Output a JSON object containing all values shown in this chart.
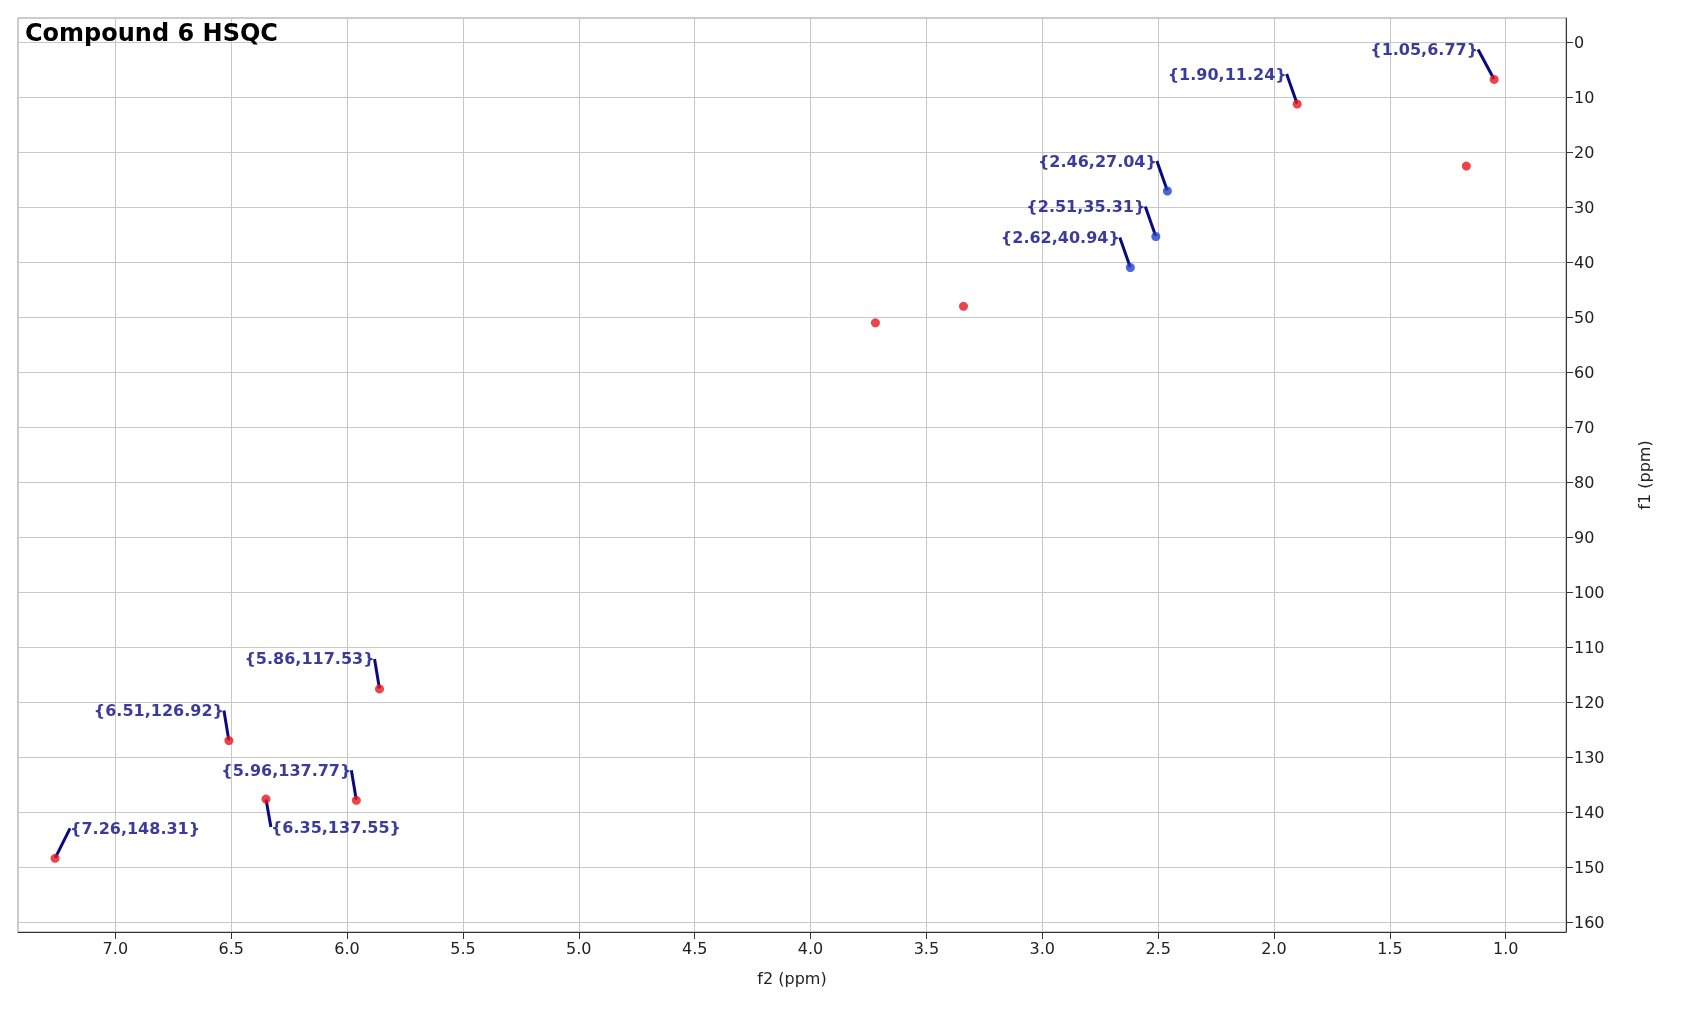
{
  "chart_data": {
    "type": "scatter",
    "title": "Compound 6 HSQC",
    "xlabel": "f2 (ppm)",
    "ylabel": "f1 (ppm)",
    "xlim": [
      7.42,
      0.74
    ],
    "ylim": [
      161.7,
      -4.4
    ],
    "xticks": [
      {
        "value": 7,
        "label": "7.0"
      },
      {
        "value": 6.5,
        "label": "6.5"
      },
      {
        "value": 6,
        "label": "6.0"
      },
      {
        "value": 5.5,
        "label": "5.5"
      },
      {
        "value": 5,
        "label": "5.0"
      },
      {
        "value": 4.5,
        "label": "4.5"
      },
      {
        "value": 4,
        "label": "4.0"
      },
      {
        "value": 3.5,
        "label": "3.5"
      },
      {
        "value": 3,
        "label": "3.0"
      },
      {
        "value": 2.5,
        "label": "2.5"
      },
      {
        "value": 2,
        "label": "2.0"
      },
      {
        "value": 1.5,
        "label": "1.5"
      },
      {
        "value": 1,
        "label": "1.0"
      }
    ],
    "yticks": [
      0,
      10,
      20,
      30,
      40,
      50,
      60,
      70,
      80,
      90,
      100,
      110,
      120,
      130,
      140,
      150,
      160
    ],
    "grid": true,
    "marker": "circle",
    "series": [
      {
        "color": "#e8141b",
        "x": [
          1.05,
          1.9,
          5.86,
          6.51,
          5.96,
          6.35,
          7.26,
          3.34,
          3.72,
          1.17
        ],
        "values": [
          6.77,
          11.24,
          117.53,
          126.92,
          137.77,
          137.55,
          148.31,
          48.0,
          51.0,
          22.5
        ]
      },
      {
        "color": "#2040d0",
        "x": [
          2.46,
          2.51,
          2.62
        ],
        "values": [
          27.04,
          35.31,
          40.94
        ]
      }
    ],
    "annotations": [
      {
        "text": "{1.05,6.77}",
        "x": 1.05,
        "y": 6.77
      },
      {
        "text": "{1.90,11.24}",
        "x": 1.9,
        "y": 11.24
      },
      {
        "text": "{2.46,27.04}",
        "x": 2.46,
        "y": 27.04
      },
      {
        "text": "{2.51,35.31}",
        "x": 2.51,
        "y": 35.31
      },
      {
        "text": "{2.62,40.94}",
        "x": 2.62,
        "y": 40.94
      },
      {
        "text": "{5.86,117.53}",
        "x": 5.86,
        "y": 117.53
      },
      {
        "text": "{6.51,126.92}",
        "x": 6.51,
        "y": 126.92
      },
      {
        "text": "{5.96,137.77}",
        "x": 5.96,
        "y": 137.77
      },
      {
        "text": "{6.35,137.55}",
        "x": 6.35,
        "y": 137.55
      },
      {
        "text": "{7.26,148.31}",
        "x": 7.26,
        "y": 148.31
      }
    ]
  }
}
